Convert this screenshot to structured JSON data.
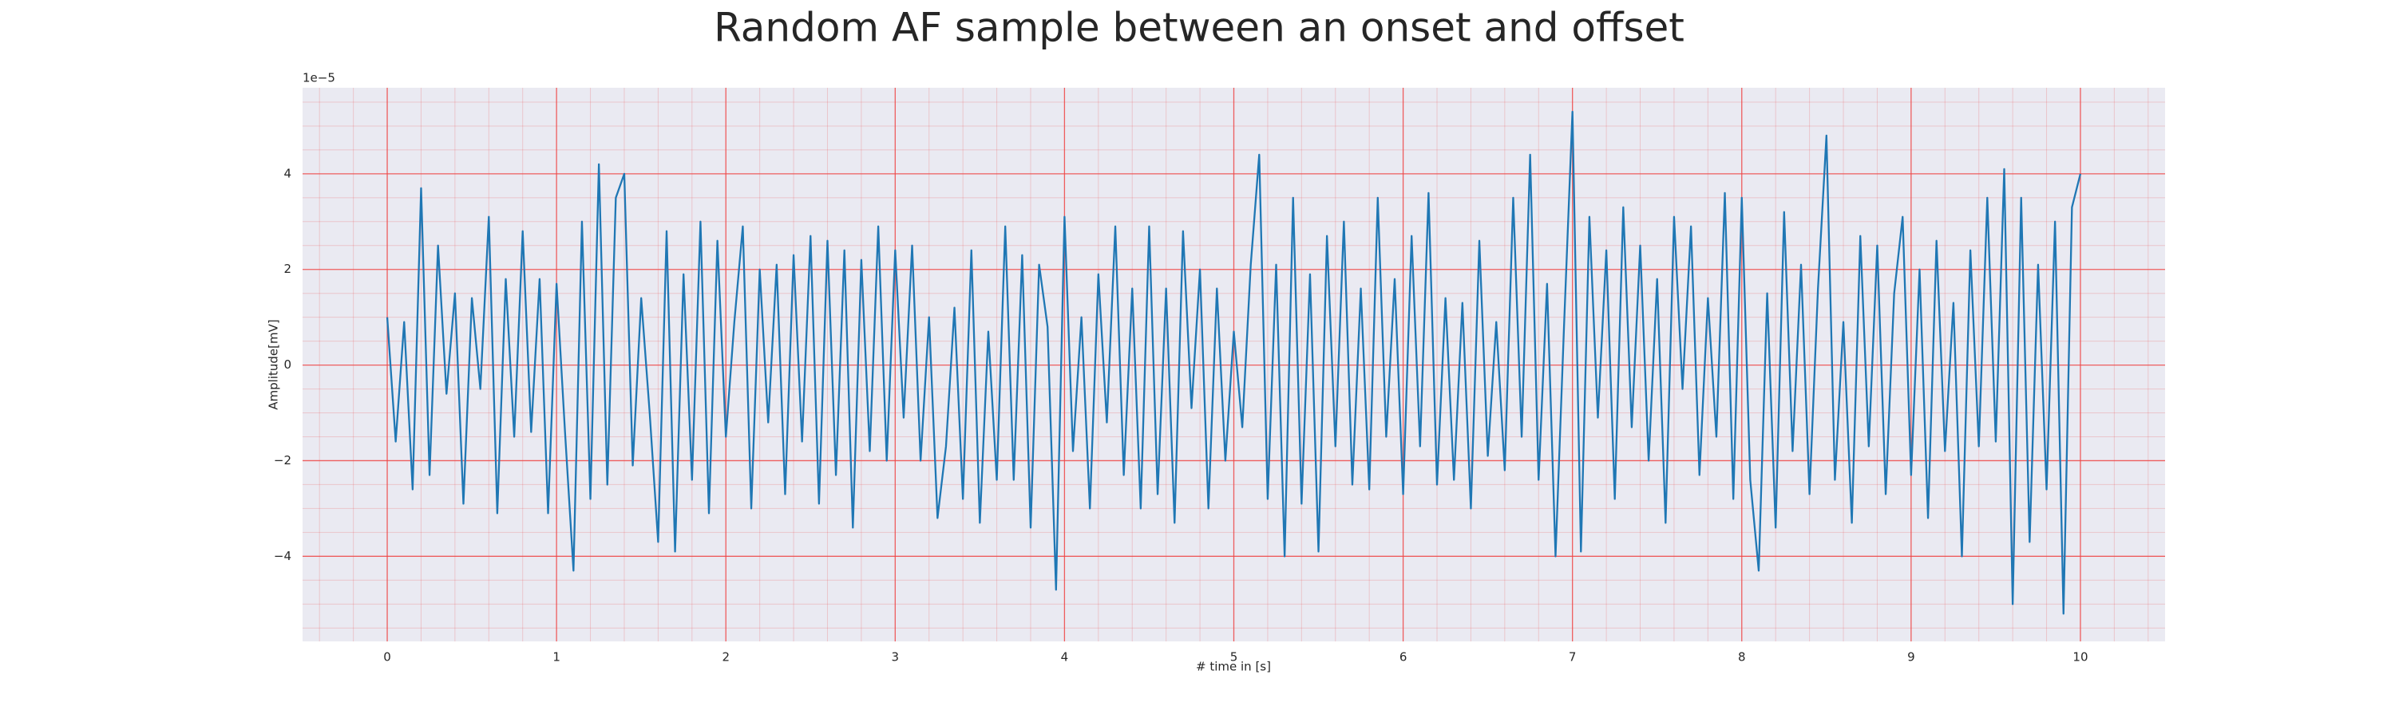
{
  "chart_data": {
    "type": "line",
    "title": "Random AF sample between an onset and offset",
    "xlabel": "# time in [s]",
    "ylabel": "Amplitude[mV]",
    "y_offset_label": "1e−5",
    "x": [
      0,
      0.05,
      0.1,
      0.15,
      0.2,
      0.25,
      0.3,
      0.35,
      0.4,
      0.45,
      0.5,
      0.55,
      0.6,
      0.65,
      0.7,
      0.75,
      0.8,
      0.85,
      0.9,
      0.95,
      1,
      1.05,
      1.1,
      1.15,
      1.2,
      1.25,
      1.3,
      1.35,
      1.4,
      1.45,
      1.5,
      1.55,
      1.6,
      1.65,
      1.7,
      1.75,
      1.8,
      1.85,
      1.9,
      1.95,
      2,
      2.05,
      2.1,
      2.15,
      2.2,
      2.25,
      2.3,
      2.35,
      2.4,
      2.45,
      2.5,
      2.55,
      2.6,
      2.65,
      2.7,
      2.75,
      2.8,
      2.85,
      2.9,
      2.95,
      3,
      3.05,
      3.1,
      3.15,
      3.2,
      3.25,
      3.3,
      3.35,
      3.4,
      3.45,
      3.5,
      3.55,
      3.6,
      3.65,
      3.7,
      3.75,
      3.8,
      3.85,
      3.9,
      3.95,
      4,
      4.05,
      4.1,
      4.15,
      4.2,
      4.25,
      4.3,
      4.35,
      4.4,
      4.45,
      4.5,
      4.55,
      4.6,
      4.65,
      4.7,
      4.75,
      4.8,
      4.85,
      4.9,
      4.95,
      5,
      5.05,
      5.1,
      5.15,
      5.2,
      5.25,
      5.3,
      5.35,
      5.4,
      5.45,
      5.5,
      5.55,
      5.6,
      5.65,
      5.7,
      5.75,
      5.8,
      5.85,
      5.9,
      5.95,
      6,
      6.05,
      6.1,
      6.15,
      6.2,
      6.25,
      6.3,
      6.35,
      6.4,
      6.45,
      6.5,
      6.55,
      6.6,
      6.65,
      6.7,
      6.75,
      6.8,
      6.85,
      6.9,
      6.95,
      7,
      7.05,
      7.1,
      7.15,
      7.2,
      7.25,
      7.3,
      7.35,
      7.4,
      7.45,
      7.5,
      7.55,
      7.6,
      7.65,
      7.7,
      7.75,
      7.8,
      7.85,
      7.9,
      7.95,
      8,
      8.05,
      8.1,
      8.15,
      8.2,
      8.25,
      8.3,
      8.35,
      8.4,
      8.45,
      8.5,
      8.55,
      8.6,
      8.65,
      8.7,
      8.75,
      8.8,
      8.85,
      8.9,
      8.95,
      9,
      9.05,
      9.1,
      9.15,
      9.2,
      9.25,
      9.3,
      9.35,
      9.4,
      9.45,
      9.5,
      9.55,
      9.6,
      9.65,
      9.7,
      9.75,
      9.8,
      9.85,
      9.9,
      9.95,
      10
    ],
    "series": [
      {
        "color": "#1f77b4",
        "values": [
          1.0,
          -1.6,
          0.9,
          -2.6,
          3.7,
          -2.3,
          2.5,
          -0.6,
          1.5,
          -2.9,
          1.4,
          -0.5,
          3.1,
          -3.1,
          1.8,
          -1.5,
          2.8,
          -1.4,
          1.8,
          -3.1,
          1.7,
          -1.4,
          -4.3,
          3.0,
          -2.8,
          4.2,
          -2.5,
          3.5,
          4.0,
          -2.1,
          1.4,
          -1.0,
          -3.7,
          2.8,
          -3.9,
          1.9,
          -2.4,
          3.0,
          -3.1,
          2.6,
          -1.5,
          0.9,
          2.9,
          -3.0,
          2.0,
          -1.2,
          2.1,
          -2.7,
          2.3,
          -1.6,
          2.7,
          -2.9,
          2.6,
          -2.3,
          2.4,
          -3.4,
          2.2,
          -1.8,
          2.9,
          -2.0,
          2.4,
          -1.1,
          2.5,
          -2.0,
          1.0,
          -3.2,
          -1.7,
          1.2,
          -2.8,
          2.4,
          -3.3,
          0.7,
          -2.4,
          2.9,
          -2.4,
          2.3,
          -3.4,
          2.1,
          0.8,
          -4.7,
          3.1,
          -1.8,
          1.0,
          -3.0,
          1.9,
          -1.2,
          2.9,
          -2.3,
          1.6,
          -3.0,
          2.9,
          -2.7,
          1.6,
          -3.3,
          2.8,
          -0.9,
          2.0,
          -3.0,
          1.6,
          -2.0,
          0.7,
          -1.3,
          2.1,
          4.4,
          -2.8,
          2.1,
          -4.0,
          3.5,
          -2.9,
          1.9,
          -3.9,
          2.7,
          -1.7,
          3.0,
          -2.5,
          1.6,
          -2.6,
          3.5,
          -1.5,
          1.8,
          -2.7,
          2.7,
          -1.7,
          3.6,
          -2.5,
          1.4,
          -2.4,
          1.3,
          -3.0,
          2.6,
          -1.9,
          0.9,
          -2.2,
          3.5,
          -1.5,
          4.4,
          -2.4,
          1.7,
          -4.0,
          0.8,
          5.3,
          -3.9,
          3.1,
          -1.1,
          2.4,
          -2.8,
          3.3,
          -1.3,
          2.5,
          -2.0,
          1.8,
          -3.3,
          3.1,
          -0.5,
          2.9,
          -2.3,
          1.4,
          -1.5,
          3.6,
          -2.8,
          3.5,
          -2.4,
          -4.3,
          1.5,
          -3.4,
          3.2,
          -1.8,
          2.1,
          -2.7,
          1.6,
          4.8,
          -2.4,
          0.9,
          -3.3,
          2.7,
          -1.7,
          2.5,
          -2.7,
          1.5,
          3.1,
          -2.3,
          2.0,
          -3.2,
          2.6,
          -1.8,
          1.3,
          -4.0,
          2.4,
          -1.7,
          3.5,
          -1.6,
          4.1,
          -5.0,
          3.5,
          -3.7,
          2.1,
          -2.6,
          3.0,
          -5.2,
          3.3,
          4.0
        ]
      }
    ],
    "xlim": [
      -0.5,
      10.5
    ],
    "ylim": [
      -5.78,
      5.8
    ],
    "xticks": [
      0,
      1,
      2,
      3,
      4,
      5,
      6,
      7,
      8,
      9,
      10
    ],
    "yticks": [
      {
        "value": -4,
        "label": "−4"
      },
      {
        "value": -2,
        "label": "−2"
      },
      0,
      2,
      4
    ],
    "grid": true,
    "minor_grid": true,
    "background": "#eaeaf2",
    "grid_color": "#ee4444"
  }
}
